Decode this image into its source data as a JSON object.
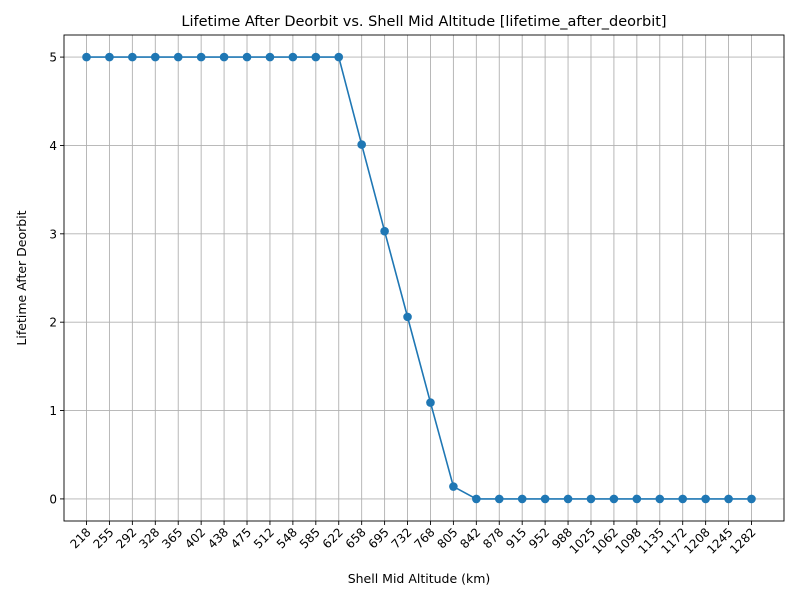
{
  "chart_data": {
    "type": "line",
    "title": "Lifetime After Deorbit vs. Shell Mid Altitude [lifetime_after_deorbit]",
    "xlabel": "Shell Mid Altitude (km)",
    "ylabel": "Lifetime After Deorbit",
    "categories": [
      "218",
      "255",
      "292",
      "328",
      "365",
      "402",
      "438",
      "475",
      "512",
      "548",
      "585",
      "622",
      "658",
      "695",
      "732",
      "768",
      "805",
      "842",
      "878",
      "915",
      "952",
      "988",
      "1025",
      "1062",
      "1098",
      "1135",
      "1172",
      "1208",
      "1245",
      "1282"
    ],
    "values": [
      5,
      5,
      5,
      5,
      5,
      5,
      5,
      5,
      5,
      5,
      5,
      5,
      4.01,
      3.03,
      2.06,
      1.09,
      0.14,
      0,
      0,
      0,
      0,
      0,
      0,
      0,
      0,
      0,
      0,
      0,
      0,
      0
    ],
    "yticks": [
      "0",
      "1",
      "2",
      "3",
      "4",
      "5"
    ],
    "ylim": [
      -0.25,
      5.25
    ],
    "grid": true,
    "marker": "circle",
    "color": "#1f77b4",
    "x_tick_rotation_deg": 45
  }
}
